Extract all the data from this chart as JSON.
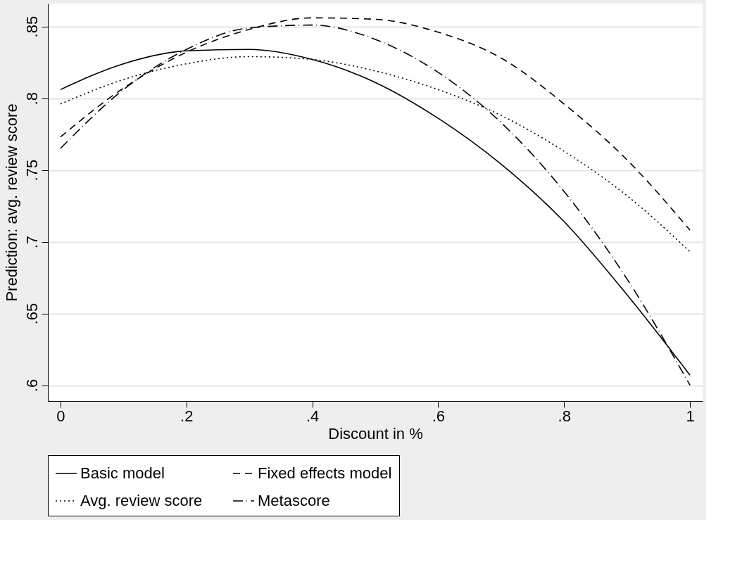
{
  "chart_data": {
    "type": "line",
    "xlabel": "Discount in %",
    "ylabel": "Prediction: avg. review score",
    "x": [
      0,
      0.1,
      0.2,
      0.3,
      0.4,
      0.5,
      0.6,
      0.7,
      0.8,
      0.9,
      1
    ],
    "series": [
      {
        "name": "Basic model",
        "color": "#000000",
        "line_style": "solid",
        "values": [
          0.806,
          0.824,
          0.833,
          0.834,
          0.827,
          0.811,
          0.786,
          0.754,
          0.714,
          0.663,
          0.607
        ]
      },
      {
        "name": "Fixed effects model",
        "color": "#000000",
        "line_style": "dashed",
        "values": [
          0.773,
          0.807,
          0.832,
          0.848,
          0.856,
          0.855,
          0.846,
          0.828,
          0.796,
          0.757,
          0.708
        ]
      },
      {
        "name": "Avg. review score",
        "color": "#000000",
        "line_style": "dotted",
        "values": [
          0.796,
          0.813,
          0.824,
          0.829,
          0.827,
          0.819,
          0.806,
          0.788,
          0.763,
          0.732,
          0.693
        ]
      },
      {
        "name": "Metascore",
        "color": "#000000",
        "line_style": "dashdot",
        "values": [
          0.765,
          0.806,
          0.834,
          0.849,
          0.851,
          0.841,
          0.818,
          0.783,
          0.735,
          0.674,
          0.6
        ]
      }
    ],
    "xlim": [
      -0.02,
      1.02
    ],
    "xticks": [
      0,
      {
        "value": 0.2,
        "label": ".2"
      },
      {
        "value": 0.4,
        "label": ".4"
      },
      {
        "value": 0.6,
        "label": ".6"
      },
      {
        "value": 0.8,
        "label": ".8"
      },
      1
    ],
    "ylim": [
      0.589,
      0.866
    ],
    "yticks": [
      {
        "value": 0.6,
        "label": ".6"
      },
      {
        "value": 0.65,
        "label": ".65"
      },
      {
        "value": 0.7,
        "label": ".7"
      },
      {
        "value": 0.75,
        "label": ".75"
      },
      {
        "value": 0.8,
        "label": ".8"
      },
      {
        "value": 0.85,
        "label": ".85"
      }
    ],
    "grid": "y",
    "legend": "bottom"
  }
}
